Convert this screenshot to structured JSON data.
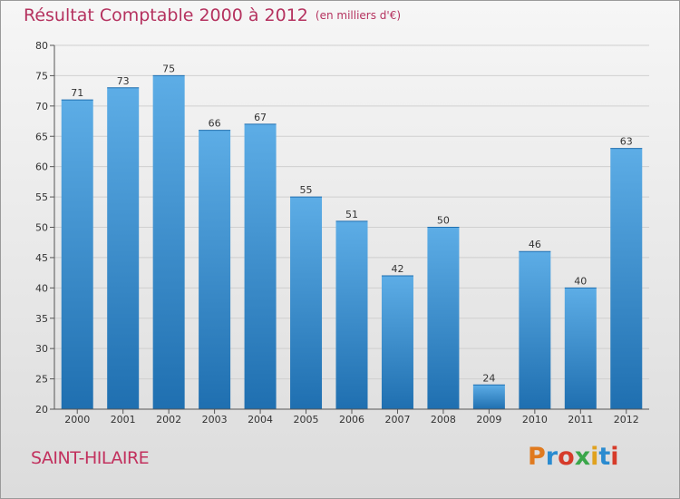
{
  "header": {
    "title": "Résultat Comptable 2000 à 2012",
    "subtitle": "(en milliers d'€)"
  },
  "footer": {
    "location": "SAINT-HILAIRE",
    "brand": "Proxiti"
  },
  "colors": {
    "title": "#b5325f",
    "bar_top": "#5dade6",
    "bar_bottom": "#1f6fb0",
    "brand_letters": [
      "#e07a1f",
      "#2a8bd0",
      "#d63b2a",
      "#3aa64a",
      "#e0a21f",
      "#2a8bd0",
      "#d63b2a"
    ]
  },
  "chart_data": {
    "type": "bar",
    "title": "Résultat Comptable 2000 à 2012",
    "subtitle": "(en milliers d'€)",
    "categories": [
      "2000",
      "2001",
      "2002",
      "2003",
      "2004",
      "2005",
      "2006",
      "2007",
      "2008",
      "2009",
      "2010",
      "2011",
      "2012"
    ],
    "values": [
      71,
      73,
      75,
      66,
      67,
      55,
      51,
      42,
      50,
      24,
      46,
      40,
      63
    ],
    "ylim": [
      20,
      80
    ],
    "yticks": [
      20,
      25,
      30,
      35,
      40,
      45,
      50,
      55,
      60,
      65,
      70,
      75,
      80
    ],
    "grid": true,
    "data_labels": true
  }
}
